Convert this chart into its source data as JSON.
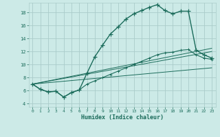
{
  "xlabel": "Humidex (Indice chaleur)",
  "bg_color": "#cceae7",
  "grid_color": "#aaccca",
  "line_color": "#1a6b5a",
  "xlim": [
    -0.5,
    23.5
  ],
  "ylim": [
    3.5,
    19.5
  ],
  "yticks": [
    4,
    6,
    8,
    10,
    12,
    14,
    16,
    18
  ],
  "xticks": [
    0,
    1,
    2,
    3,
    4,
    5,
    6,
    7,
    8,
    9,
    10,
    11,
    12,
    13,
    14,
    15,
    16,
    17,
    18,
    19,
    20,
    21,
    22,
    23
  ],
  "curve1_x": [
    0,
    1,
    2,
    3,
    4,
    5,
    6,
    7,
    8,
    9,
    10,
    11,
    12,
    13,
    14,
    15,
    16,
    17,
    18,
    19,
    20,
    21,
    22,
    23
  ],
  "curve1_y": [
    7.0,
    6.2,
    5.8,
    5.9,
    5.0,
    5.7,
    6.1,
    8.7,
    11.2,
    13.0,
    14.7,
    15.8,
    17.0,
    17.8,
    18.3,
    18.8,
    19.2,
    18.3,
    17.8,
    18.2,
    18.2,
    12.2,
    11.5,
    11.0
  ],
  "line1_x": [
    0,
    23
  ],
  "line1_y": [
    7.0,
    9.5
  ],
  "line2_x": [
    0,
    23
  ],
  "line2_y": [
    7.0,
    12.5
  ],
  "curve2_x": [
    0,
    1,
    2,
    3,
    4,
    5,
    6,
    7,
    8,
    9,
    10,
    11,
    12,
    13,
    14,
    15,
    16,
    17,
    18,
    19,
    20,
    21,
    22,
    23
  ],
  "curve2_y": [
    7.0,
    6.2,
    5.8,
    5.9,
    5.0,
    5.7,
    6.1,
    7.0,
    7.5,
    8.0,
    8.5,
    9.0,
    9.5,
    10.0,
    10.5,
    11.0,
    11.5,
    11.8,
    11.9,
    12.2,
    12.3,
    11.5,
    11.0,
    10.8
  ],
  "curve3_x": [
    0,
    23
  ],
  "curve3_y": [
    7.0,
    12.0
  ]
}
